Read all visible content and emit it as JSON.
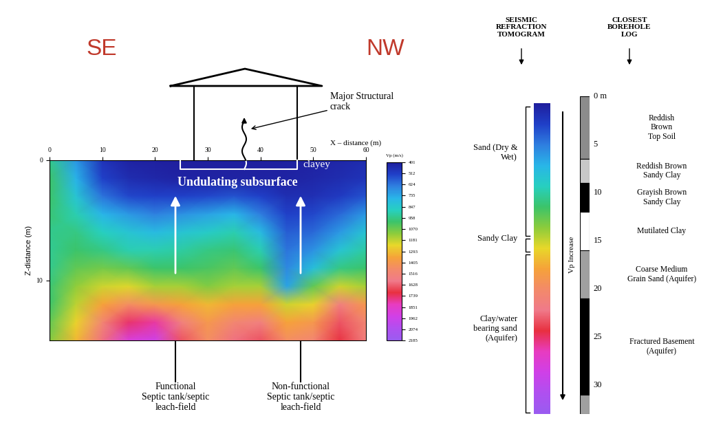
{
  "chart_data": {
    "type": "heatmap",
    "xlabel": "X – distance (m)",
    "ylabel": "Z-distance (m)",
    "xlim": [
      0,
      60
    ],
    "ylim": [
      15,
      0
    ],
    "xticks": [
      0,
      10,
      20,
      30,
      40,
      50,
      60
    ],
    "yticks": [
      0,
      10
    ],
    "x": [
      0,
      5,
      10,
      15,
      20,
      25,
      30,
      35,
      40,
      45,
      50,
      55,
      60
    ],
    "z": [
      0,
      1.5,
      3,
      4.5,
      6,
      7.5,
      9,
      10.5,
      12,
      13.5,
      15
    ],
    "cells": [
      [
        950,
        700,
        480,
        420,
        410,
        405,
        405,
        405,
        405,
        410,
        420,
        430,
        450
      ],
      [
        1000,
        750,
        520,
        450,
        430,
        420,
        420,
        420,
        420,
        420,
        430,
        450,
        480
      ],
      [
        1000,
        820,
        620,
        540,
        520,
        520,
        540,
        560,
        520,
        460,
        470,
        500,
        560
      ],
      [
        980,
        900,
        760,
        700,
        650,
        680,
        720,
        760,
        640,
        520,
        540,
        600,
        700
      ],
      [
        950,
        960,
        880,
        820,
        780,
        820,
        860,
        900,
        780,
        580,
        600,
        700,
        820
      ],
      [
        940,
        1000,
        960,
        900,
        900,
        920,
        960,
        980,
        900,
        620,
        680,
        820,
        920
      ],
      [
        950,
        1050,
        1080,
        1050,
        1000,
        1000,
        1020,
        1050,
        1000,
        660,
        800,
        960,
        1000
      ],
      [
        980,
        1120,
        1200,
        1220,
        1150,
        1150,
        1100,
        1150,
        1150,
        720,
        1050,
        1200,
        1150
      ],
      [
        1000,
        1180,
        1350,
        1450,
        1400,
        1350,
        1300,
        1350,
        1350,
        1200,
        1250,
        1550,
        1400
      ],
      [
        1050,
        1250,
        1500,
        1750,
        1800,
        1550,
        1400,
        1500,
        1550,
        1350,
        1400,
        1650,
        1500
      ],
      [
        1100,
        1300,
        1600,
        1900,
        1950,
        1650,
        1450,
        1600,
        1650,
        1450,
        1500,
        1700,
        1550
      ]
    ],
    "colorbar_label": "Vp (m/s)",
    "colorbar_range": [
      401,
      2185
    ],
    "colorbar_ticks": [
      401,
      512,
      624,
      735,
      847,
      958,
      1070,
      1181,
      1293,
      1405,
      1516,
      1628,
      1739,
      1851,
      1962,
      2074,
      2185
    ]
  },
  "directions": [
    "SE",
    "NW"
  ],
  "annotations": {
    "crack": "Major Structural\ncrack",
    "clayey": "clayey",
    "subsurface": "Undulating subsurface",
    "functional": "Functional\nSeptic tank/septic\nleach-field",
    "non_functional": "Non-functional\nSeptic tank/septic\nleach-field"
  },
  "velocity_column": {
    "title": "SEISMIC\nREFRACTION\nTOMOGRAM",
    "arrow_label": "Vp Increase",
    "zones": [
      "Sand (Dry &\nWet)",
      "Sandy Clay",
      "Clay/water\nbearing sand\n(Aquifer)"
    ]
  },
  "borehole_log": {
    "title": "CLOSEST\nBOREHOLE\nLOG",
    "depth_range": [
      0,
      33
    ],
    "depth_ticks": [
      {
        "value": 0,
        "label": "0 m"
      },
      5,
      10,
      15,
      20,
      25,
      30
    ],
    "layers": [
      {
        "name": "Reddish\nBrown\nTop Soil",
        "top": 0,
        "bottom": 6.5,
        "color": "#8c8c8c"
      },
      {
        "name": "Reddish Brown\nSandy Clay",
        "top": 6.5,
        "bottom": 9,
        "color": "#c8c8c8"
      },
      {
        "name": "Grayish Brown\nSandy Clay",
        "top": 9,
        "bottom": 12,
        "color": "#000000"
      },
      {
        "name": "Mutilated Clay",
        "top": 12,
        "bottom": 16,
        "color": "#ffffff"
      },
      {
        "name": "Coarse Medium\nGrain Sand (Aquifer)",
        "top": 16,
        "bottom": 21,
        "color": "#a0a0a0"
      },
      {
        "name": "Fractured Basement\n(Aquifer)",
        "top": 21,
        "bottom": 31,
        "color": "#000000"
      },
      {
        "name": null,
        "top": 31,
        "bottom": 33,
        "color": "#a0a0a0"
      }
    ]
  }
}
